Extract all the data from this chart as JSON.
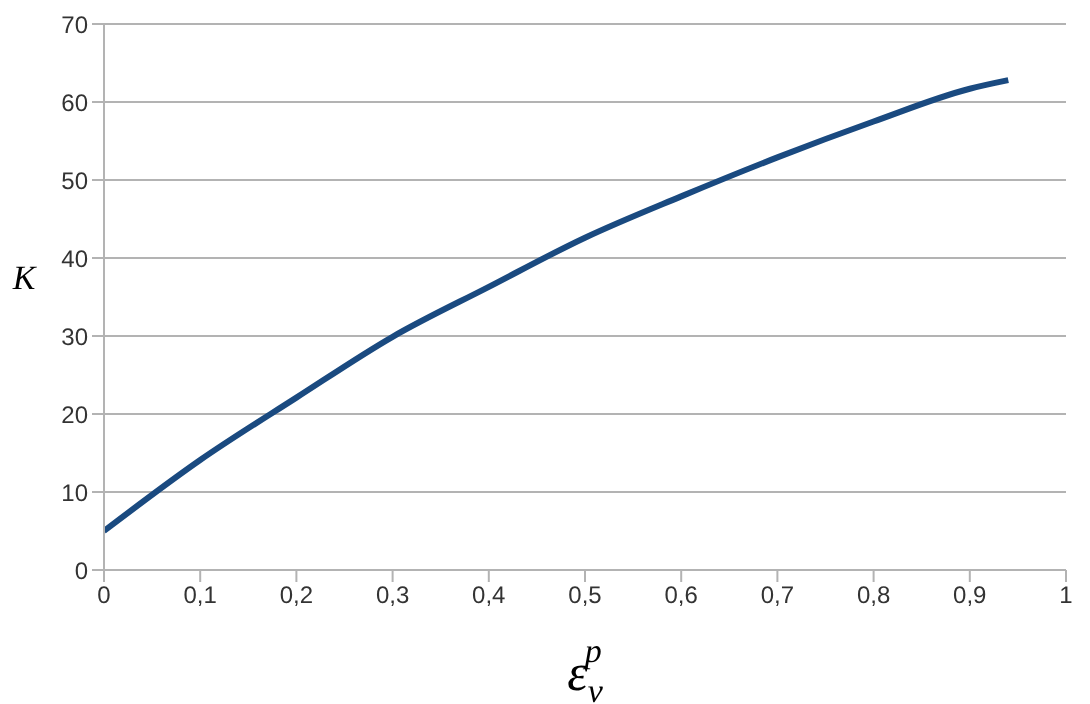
{
  "chart_data": {
    "type": "line",
    "xlabel": "ε$_{v}$$^{p}$",
    "ylabel": "K",
    "x": [
      0,
      0.1,
      0.2,
      0.3,
      0.4,
      0.5,
      0.6,
      0.7,
      0.8,
      0.9,
      0.94
    ],
    "series": [
      {
        "color": "#1a4a80",
        "values": [
          5.0,
          14.1,
          22.1,
          29.9,
          36.3,
          42.6,
          47.9,
          52.9,
          57.5,
          61.7,
          62.8
        ]
      }
    ],
    "xlim": [
      0,
      1
    ],
    "xticks": [
      0,
      {
        "value": 0.1,
        "label": "0,1"
      },
      {
        "value": 0.2,
        "label": "0,2"
      },
      {
        "value": 0.3,
        "label": "0,3"
      },
      {
        "value": 0.4,
        "label": "0,4"
      },
      {
        "value": 0.5,
        "label": "0,5"
      },
      {
        "value": 0.6,
        "label": "0,6"
      },
      {
        "value": 0.7,
        "label": "0,7"
      },
      {
        "value": 0.8,
        "label": "0,8"
      },
      {
        "value": 0.9,
        "label": "0,9"
      },
      1
    ],
    "ylim": [
      0,
      70
    ],
    "yticks": [
      0,
      10,
      20,
      30,
      40,
      50,
      60,
      70
    ],
    "grid": "y",
    "marker": "none",
    "line_style": "solid"
  }
}
